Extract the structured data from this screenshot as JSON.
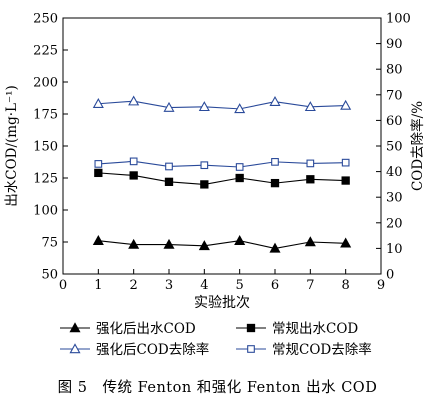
{
  "chart_data": {
    "type": "line",
    "xlabel": "实验批次",
    "ylabel_left": "出水COD/(mg·L⁻¹)",
    "ylabel_right": "COD去除率/%",
    "xlim": [
      0,
      9
    ],
    "xticks": [
      "0",
      "1",
      "2",
      "3",
      "4",
      "5",
      "6",
      "7",
      "8",
      "9"
    ],
    "ylim_left": [
      50,
      250
    ],
    "yticks_left": [
      "50",
      "75",
      "100",
      "125",
      "150",
      "175",
      "200",
      "225",
      "250"
    ],
    "ylim_right": [
      0,
      100
    ],
    "yticks_right": [
      "0",
      "10",
      "20",
      "30",
      "40",
      "50",
      "60",
      "70",
      "80",
      "90",
      "100"
    ],
    "x": [
      1,
      2,
      3,
      4,
      5,
      6,
      7,
      8
    ],
    "series": [
      {
        "name": "强化后出水COD",
        "axis": "left",
        "marker": "filled-triangle",
        "color": "#000000",
        "values": [
          76,
          73,
          73,
          72,
          76,
          70,
          75,
          74
        ]
      },
      {
        "name": "常规出水COD",
        "axis": "left",
        "marker": "filled-square",
        "color": "#000000",
        "values": [
          129,
          127,
          122,
          120,
          125,
          121,
          124,
          123
        ]
      },
      {
        "name": "强化后COD去除率",
        "axis": "right",
        "marker": "open-triangle",
        "color": "#2a4a9a",
        "values": [
          66.5,
          67.5,
          65.0,
          65.3,
          64.5,
          67.3,
          65.3,
          65.8
        ]
      },
      {
        "name": "常规COD去除率",
        "axis": "right",
        "marker": "open-square",
        "color": "#2a4a9a",
        "values": [
          43.0,
          44.0,
          42.0,
          42.5,
          41.8,
          43.8,
          43.2,
          43.5
        ]
      }
    ],
    "grid": false,
    "legend_position": "bottom"
  },
  "caption": "图 5　传统 Fenton 和强化 Fenton 出水 COD"
}
